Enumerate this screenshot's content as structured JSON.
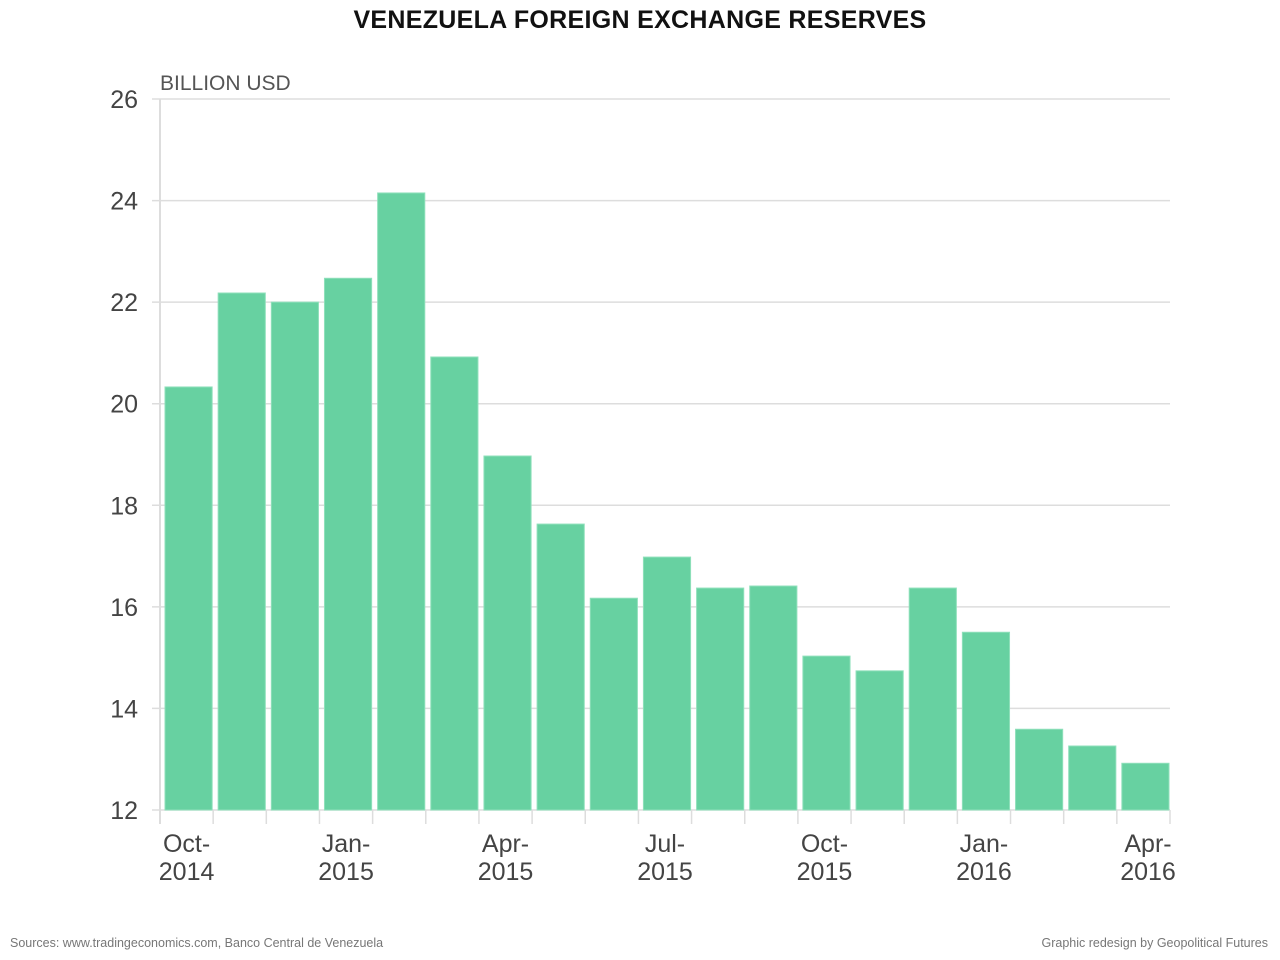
{
  "chart_data": {
    "type": "bar",
    "title": "VENEZUELA FOREIGN EXCHANGE RESERVES",
    "ylabel": "BILLION USD",
    "xlabel": "",
    "ylim": [
      12,
      26
    ],
    "yticks": [
      12,
      14,
      16,
      18,
      20,
      22,
      24,
      26
    ],
    "grid": true,
    "bar_color": "#67d1a1",
    "categories": [
      "Oct-2014",
      "Nov-2014",
      "Dec-2014",
      "Jan-2015",
      "Feb-2015",
      "Mar-2015",
      "Apr-2015",
      "May-2015",
      "Jun-2015",
      "Jul-2015",
      "Aug-2015",
      "Sep-2015",
      "Oct-2015",
      "Nov-2015",
      "Dec-2015",
      "Jan-2016",
      "Feb-2016",
      "Mar-2016",
      "Apr-2016"
    ],
    "values": [
      20.33,
      22.18,
      22.0,
      22.47,
      24.15,
      20.92,
      18.97,
      17.63,
      16.17,
      16.98,
      16.37,
      16.41,
      15.03,
      14.74,
      16.37,
      15.5,
      13.59,
      13.26,
      12.92
    ],
    "xtick_labels": [
      {
        "index": 0,
        "line1": "Oct-",
        "line2": "2014"
      },
      {
        "index": 3,
        "line1": "Jan-",
        "line2": "2015"
      },
      {
        "index": 6,
        "line1": "Apr-",
        "line2": "2015"
      },
      {
        "index": 9,
        "line1": "Jul-",
        "line2": "2015"
      },
      {
        "index": 12,
        "line1": "Oct-",
        "line2": "2015"
      },
      {
        "index": 15,
        "line1": "Jan-",
        "line2": "2016"
      },
      {
        "index": 18,
        "line1": "Apr-",
        "line2": "2016"
      }
    ]
  },
  "footer": {
    "sources": "Sources: www.tradingeconomics.com, Banco Central de Venezuela",
    "credit": "Graphic redesign by Geopolitical Futures"
  }
}
